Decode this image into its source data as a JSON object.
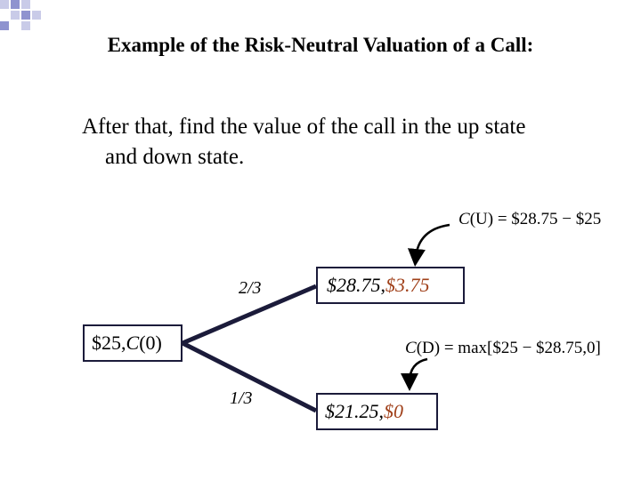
{
  "slide": {
    "title": "Example of the Risk-Neutral Valuation of a Call:",
    "body_line1": "After that, find the value of the call in the up state",
    "body_line2": "and down state."
  },
  "tree": {
    "root": {
      "price": "$25",
      "sep": ", ",
      "label": "C",
      "paren": "(0)"
    },
    "prob_up": "2/3",
    "prob_down": "1/3",
    "up_node": {
      "price": "$28.75",
      "sep": ", ",
      "value": "$3.75"
    },
    "down_node": {
      "price": "$21.25",
      "sep": ", ",
      "value": "$0"
    }
  },
  "formulas": {
    "up": {
      "lhs_fn": "C",
      "lhs_arg": "(U)",
      "rhs": " = $28.75 − $25"
    },
    "down": {
      "lhs_fn": "C",
      "lhs_arg": "(D)",
      "rhs": " = max[$25 − $28.75,0]"
    }
  },
  "colors": {
    "accent_value": "#a0401a",
    "corner_squares": [
      "#c9cbe8",
      "#8f93cf"
    ]
  }
}
